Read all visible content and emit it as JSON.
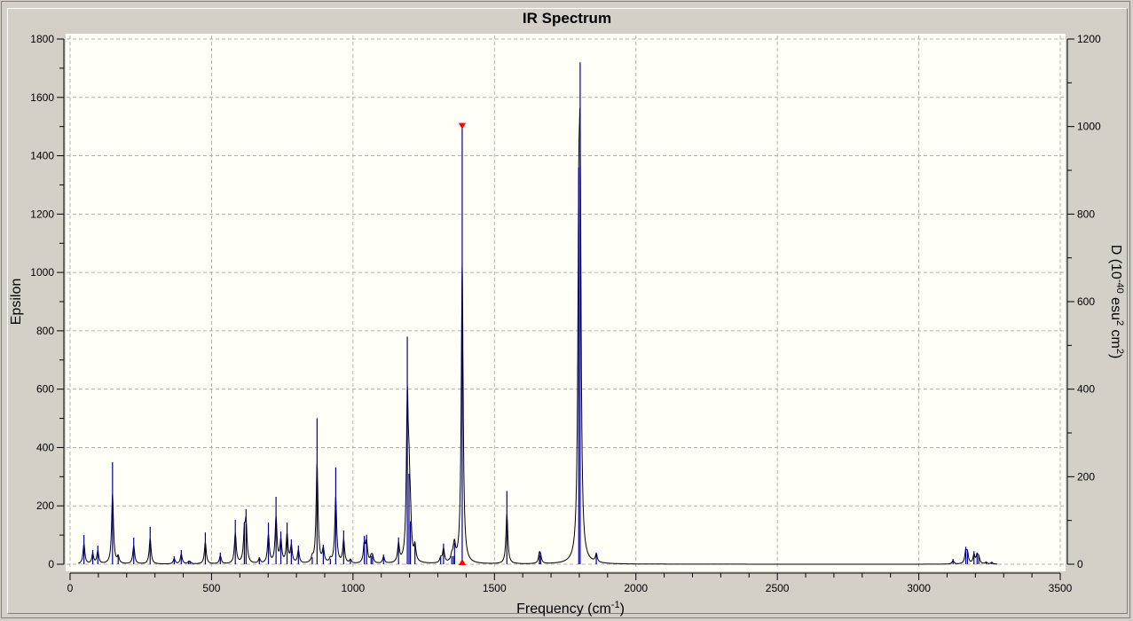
{
  "window": {
    "background": "#d4d0c8"
  },
  "chart_data": {
    "type": "bar",
    "subtype": "stick spectrum with broadened line",
    "title": "IR Spectrum",
    "xlabel_parts": [
      {
        "text": "Frequency (cm"
      },
      {
        "text": "-1",
        "sup": true
      },
      {
        "text": ")"
      }
    ],
    "ylabel": "Epsilon",
    "y2label_parts": [
      {
        "text": "D (10"
      },
      {
        "text": "-40",
        "sup": true
      },
      {
        "text": " esu"
      },
      {
        "text": "2",
        "sup": true
      },
      {
        "text": " cm"
      },
      {
        "text": "2",
        "sup": true
      },
      {
        "text": ")"
      }
    ],
    "xlim": [
      0,
      3500
    ],
    "ylim": [
      0,
      1800
    ],
    "y2lim": [
      0,
      1200
    ],
    "x_ticks": [
      0,
      500,
      1000,
      1500,
      2000,
      2500,
      3000,
      3500
    ],
    "y_ticks": [
      0,
      200,
      400,
      600,
      800,
      1000,
      1200,
      1400,
      1600,
      1800
    ],
    "y2_ticks": [
      0,
      200,
      400,
      600,
      800,
      1000,
      1200
    ],
    "grid": true,
    "colors": {
      "sticks": "#000099",
      "curve": "#000000",
      "marker": "#ff0000",
      "plot_bg": "#fffff8",
      "grid": "#b0b0b0"
    },
    "selected_peak": {
      "frequency": 1386,
      "epsilon": 1500
    },
    "sticks": {
      "frequency": [
        49,
        80,
        98,
        150,
        170,
        225,
        283,
        368,
        393,
        419,
        424,
        478,
        531,
        584,
        616,
        622,
        669,
        701,
        728,
        745,
        767,
        782,
        807,
        856,
        873,
        895,
        920,
        939,
        967,
        991,
        1040,
        1048,
        1064,
        1069,
        1108,
        1161,
        1192,
        1198,
        1203,
        1219,
        1310,
        1320,
        1349,
        1355,
        1359,
        1386,
        1544,
        1659,
        1663,
        1798,
        1803,
        1860,
        3121,
        3166,
        3172,
        3195,
        3206,
        3212,
        3238,
        3258
      ],
      "epsilon": [
        100,
        49,
        64,
        350,
        33,
        91,
        128,
        27,
        49,
        9,
        9,
        109,
        40,
        152,
        143,
        189,
        24,
        143,
        231,
        112,
        143,
        85,
        64,
        24,
        500,
        67,
        18,
        332,
        116,
        18,
        97,
        101,
        28,
        33,
        33,
        92,
        780,
        310,
        147,
        74,
        24,
        71,
        28,
        28,
        74,
        1500,
        251,
        44,
        30,
        1360,
        1720,
        40,
        18,
        60,
        50,
        45,
        40,
        30,
        9,
        8
      ]
    }
  }
}
